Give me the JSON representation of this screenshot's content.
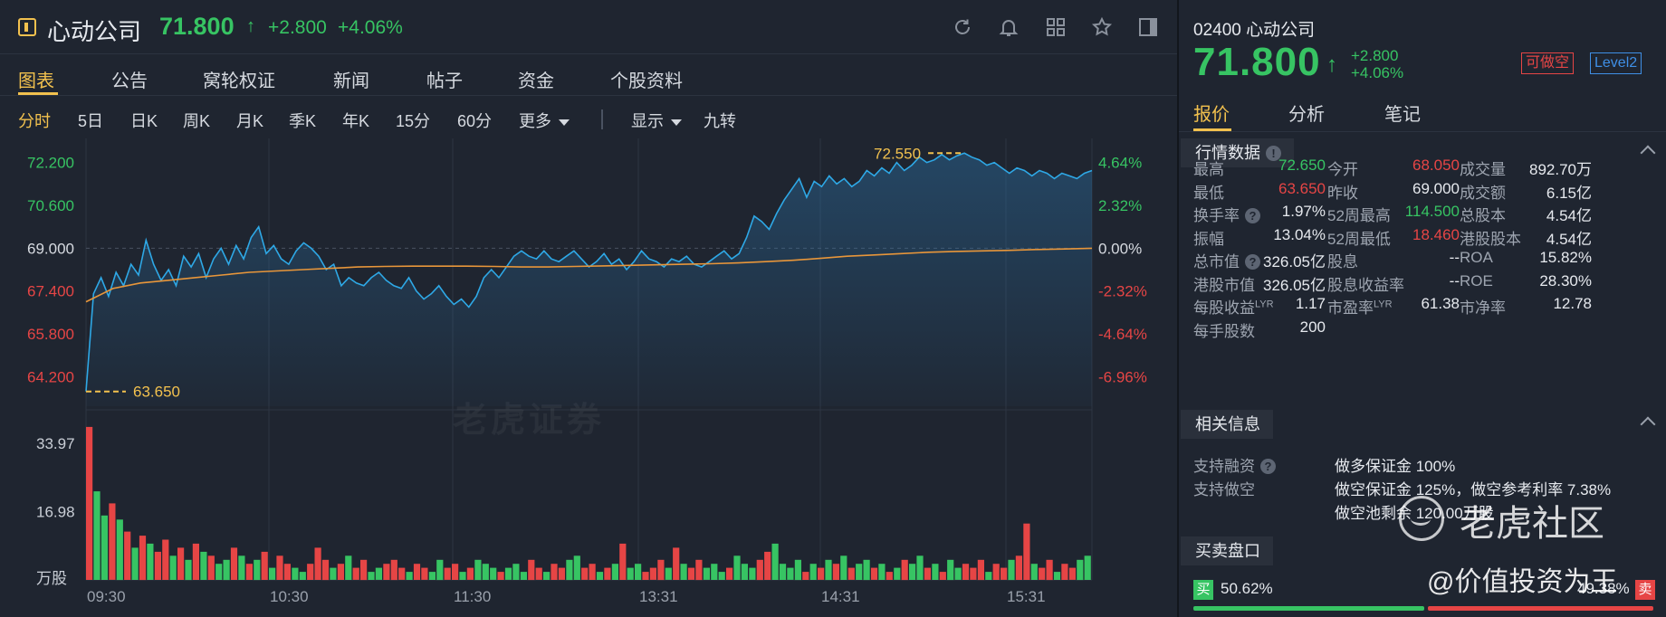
{
  "header": {
    "name": "心动公司",
    "price": "71.800",
    "arrow": "↑",
    "change": "+2.800",
    "change_pct": "+4.06%",
    "icons": [
      "refresh-icon",
      "bell-icon",
      "grid-icon",
      "star-icon",
      "panel-icon"
    ]
  },
  "tabs": [
    "图表",
    "公告",
    "窝轮权证",
    "新闻",
    "帖子",
    "资金",
    "个股资料"
  ],
  "periods": [
    "分时",
    "5日",
    "日K",
    "周K",
    "月K",
    "季K",
    "年K",
    "15分",
    "60分",
    "更多"
  ],
  "display_label": "显示",
  "nine_turn_label": "九转",
  "watermark_chart": "老虎证券",
  "chart_data": {
    "type": "line",
    "title": "",
    "prev_close": 69.0,
    "y_ticks": [
      "72.200",
      "70.600",
      "69.000",
      "67.400",
      "65.800",
      "64.200"
    ],
    "y_tick_values": [
      72.2,
      70.6,
      69.0,
      67.4,
      65.8,
      64.2
    ],
    "pct_ticks": [
      "4.64%",
      "2.32%",
      "0.00%",
      "-2.32%",
      "-4.64%",
      "-6.96%"
    ],
    "ylim": [
      63.1,
      73.1
    ],
    "x_ticks": [
      "09:30",
      "10:30",
      "11:30",
      "13:31",
      "14:31",
      "15:31"
    ],
    "high_label": "72.550",
    "low_label": "63.650",
    "high": 72.55,
    "low": 63.65,
    "price_series": [
      63.65,
      67.3,
      67.9,
      67.2,
      68.1,
      67.6,
      68.4,
      68.0,
      69.3,
      68.4,
      67.8,
      68.2,
      67.6,
      68.7,
      68.3,
      68.8,
      67.9,
      68.6,
      69.0,
      68.4,
      69.1,
      68.6,
      69.4,
      69.8,
      68.8,
      69.1,
      68.6,
      68.4,
      68.9,
      69.2,
      69.0,
      68.7,
      68.2,
      68.4,
      67.6,
      67.9,
      67.7,
      67.6,
      67.9,
      68.1,
      67.8,
      67.6,
      67.5,
      67.9,
      67.4,
      67.1,
      67.3,
      67.6,
      67.2,
      66.9,
      67.1,
      66.8,
      67.2,
      67.9,
      68.2,
      67.9,
      68.3,
      68.7,
      68.9,
      68.7,
      68.6,
      68.9,
      68.6,
      68.5,
      68.7,
      68.9,
      68.6,
      68.3,
      68.5,
      68.8,
      68.4,
      68.6,
      68.2,
      68.5,
      68.9,
      68.6,
      68.5,
      68.3,
      68.6,
      68.5,
      68.7,
      68.4,
      68.3,
      68.5,
      68.7,
      68.9,
      68.6,
      68.8,
      69.4,
      70.2,
      70.0,
      69.7,
      70.3,
      70.8,
      71.2,
      71.6,
      70.9,
      71.5,
      71.3,
      71.7,
      71.4,
      71.6,
      71.3,
      71.5,
      71.9,
      71.7,
      72.0,
      71.8,
      72.2,
      71.9,
      72.1,
      72.4,
      72.2,
      72.3,
      72.5,
      72.3,
      72.45,
      72.55,
      72.4,
      72.3,
      72.1,
      72.2,
      72.0,
      71.8,
      72.0,
      71.9,
      71.7,
      71.9,
      71.8,
      71.6,
      71.8,
      71.7,
      71.6,
      71.8,
      71.9
    ],
    "avg_series": [
      67.0,
      67.5,
      67.7,
      67.8,
      67.9,
      68.0,
      68.1,
      68.15,
      68.2,
      68.25,
      68.3,
      68.32,
      68.33,
      68.33,
      68.33,
      68.32,
      68.3,
      68.3,
      68.32,
      68.34,
      68.36,
      68.38,
      68.4,
      68.42,
      68.45,
      68.5,
      68.55,
      68.62,
      68.7,
      68.75,
      68.8,
      68.85,
      68.88,
      68.9,
      68.92,
      68.95,
      68.97,
      69.0
    ],
    "volume_ticks": [
      "33.97",
      "16.98",
      "万股"
    ],
    "volume_max": 40,
    "volume_series": [
      38,
      22,
      16,
      19,
      15,
      12,
      8,
      11,
      9,
      7,
      10,
      6,
      8,
      5,
      9,
      7,
      6,
      4,
      5,
      8,
      6,
      4,
      5,
      7,
      3,
      6,
      4,
      3,
      2,
      4,
      8,
      5,
      3,
      4,
      6,
      3,
      5,
      2,
      3,
      4,
      5,
      3,
      2,
      4,
      3,
      2,
      5,
      3,
      4,
      2,
      3,
      5,
      4,
      3,
      2,
      3,
      4,
      2,
      5,
      3,
      2,
      4,
      3,
      5,
      6,
      3,
      4,
      2,
      3,
      4,
      9,
      3,
      4,
      2,
      3,
      5,
      3,
      8,
      4,
      3,
      5,
      3,
      4,
      2,
      3,
      6,
      4,
      3,
      5,
      7,
      9,
      4,
      3,
      5,
      2,
      4,
      3,
      5,
      4,
      6,
      3,
      4,
      5,
      3,
      4,
      2,
      3,
      5,
      4,
      6,
      3,
      4,
      2,
      5,
      3,
      4,
      3,
      5,
      2,
      4,
      3,
      5,
      6,
      14,
      4,
      3,
      5,
      2,
      4,
      3,
      5,
      6
    ],
    "volume_colors": [
      "#e64545",
      "#37c463"
    ]
  },
  "right": {
    "code": "02400",
    "name": "心动公司",
    "price": "71.800",
    "arrow": "↑",
    "change": "+2.800",
    "change_pct": "+4.06%",
    "badge_short": "可做空",
    "badge_level2": "Level2",
    "tabs": [
      "报价",
      "分析",
      "笔记"
    ],
    "section_quote": "行情数据",
    "stats": [
      {
        "label": "最高",
        "value": "72.650",
        "color": "#37c463"
      },
      {
        "label": "今开",
        "value": "68.050",
        "color": "#e64545"
      },
      {
        "label": "成交量",
        "value": "892.70万",
        "color": "#e6e9ee"
      },
      {
        "label": "最低",
        "value": "63.650",
        "color": "#e64545"
      },
      {
        "label": "昨收",
        "value": "69.000",
        "color": "#e6e9ee"
      },
      {
        "label": "成交额",
        "value": "6.15亿",
        "color": "#e6e9ee"
      },
      {
        "label": "换手率",
        "value": "1.97%",
        "color": "#e6e9ee",
        "help": true
      },
      {
        "label": "52周最高",
        "value": "114.500",
        "color": "#37c463"
      },
      {
        "label": "总股本",
        "value": "4.54亿",
        "color": "#e6e9ee"
      },
      {
        "label": "振幅",
        "value": "13.04%",
        "color": "#e6e9ee"
      },
      {
        "label": "52周最低",
        "value": "18.460",
        "color": "#e64545"
      },
      {
        "label": "港股股本",
        "value": "4.54亿",
        "color": "#e6e9ee"
      },
      {
        "label": "总市值",
        "value": "326.05亿",
        "color": "#e6e9ee",
        "help": true
      },
      {
        "label": "股息",
        "value": "--",
        "color": "#e6e9ee"
      },
      {
        "label": "ROA",
        "value": "15.82%",
        "color": "#e6e9ee"
      },
      {
        "label": "港股市值",
        "value": "326.05亿",
        "color": "#e6e9ee"
      },
      {
        "label": "股息收益率",
        "value": "--",
        "color": "#e6e9ee"
      },
      {
        "label": "ROE",
        "value": "28.30%",
        "color": "#e6e9ee"
      },
      {
        "label": "每股收益",
        "sup": "LYR",
        "value": "1.17",
        "color": "#e6e9ee"
      },
      {
        "label": "市盈率",
        "sup": "LYR",
        "value": "61.38",
        "color": "#e6e9ee"
      },
      {
        "label": "市净率",
        "value": "12.78",
        "color": "#e6e9ee"
      },
      {
        "label": "每手股数",
        "value": "200",
        "color": "#e6e9ee"
      }
    ],
    "section_related": "相关信息",
    "related": [
      {
        "label": "支持融资",
        "help": true,
        "value": "做多保证金 100%"
      },
      {
        "label": "支持做空",
        "value": "做空保证金 125%，做空参考利率 7.38%"
      },
      {
        "label": "",
        "value": "做空池剩余 120.00万股"
      }
    ],
    "section_book": "买卖盘口",
    "buy_tag": "买",
    "buy_pct": "50.62%",
    "buy_ratio": 0.5062,
    "sell_pct": "49.38%",
    "sell_tag": "卖"
  },
  "watermark": {
    "brand": "老虎社区",
    "author": "@价值投资为王"
  }
}
